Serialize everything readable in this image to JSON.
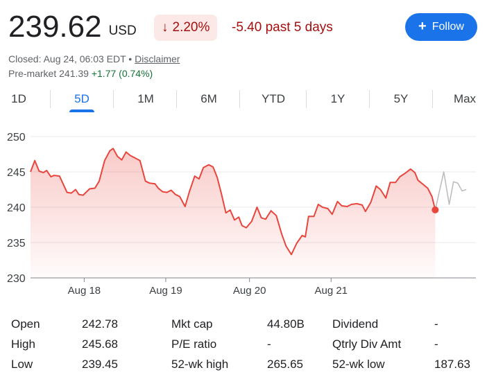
{
  "quote": {
    "price": "239.62",
    "currency": "USD",
    "change_arrow": "↓",
    "change_percent": "2.20%",
    "change_period": "-5.40 past 5 days",
    "closed_text": "Closed: Aug 24, 06:03 EDT •",
    "disclaimer": "Disclaimer",
    "premarket_label": "Pre-market 241.39",
    "premarket_change": "+1.77 (0.74%)"
  },
  "follow_button": {
    "icon": "plus-icon",
    "label": "Follow"
  },
  "tabs": [
    "1D",
    "5D",
    "1M",
    "6M",
    "YTD",
    "1Y",
    "5Y",
    "Max"
  ],
  "active_tab": "5D",
  "colors": {
    "negative": "#a50e0e",
    "line": "#e8453c",
    "accent": "#1a73e8",
    "forecast": "#bdbdbd"
  },
  "chart_data": {
    "type": "line",
    "title": "",
    "xlabel": "",
    "ylabel": "",
    "ylim": [
      230,
      250
    ],
    "yticks": [
      250,
      245,
      240,
      235,
      230
    ],
    "grid": true,
    "xticks": [
      {
        "label": "Aug 18",
        "at": 2.5
      },
      {
        "label": "Aug 19",
        "at": 6.3
      },
      {
        "label": "Aug 20",
        "at": 10.2
      },
      {
        "label": "Aug 21",
        "at": 14.0
      }
    ],
    "x_range": [
      0,
      19
    ],
    "series": [
      {
        "values": [
          [
            0.0,
            245.0
          ],
          [
            0.2,
            246.6
          ],
          [
            0.4,
            245.1
          ],
          [
            0.6,
            244.9
          ],
          [
            0.75,
            245.2
          ],
          [
            0.95,
            244.3
          ],
          [
            1.1,
            244.5
          ],
          [
            1.35,
            244.4
          ],
          [
            1.7,
            242.1
          ],
          [
            1.9,
            242.0
          ],
          [
            2.1,
            242.5
          ],
          [
            2.25,
            241.8
          ],
          [
            2.45,
            241.7
          ],
          [
            2.75,
            242.6
          ],
          [
            3.0,
            242.7
          ],
          [
            3.2,
            243.7
          ],
          [
            3.45,
            246.6
          ],
          [
            3.7,
            248.0
          ],
          [
            3.85,
            248.3
          ],
          [
            4.05,
            247.2
          ],
          [
            4.25,
            246.7
          ],
          [
            4.45,
            247.8
          ],
          [
            4.65,
            247.3
          ],
          [
            4.85,
            247.0
          ],
          [
            5.1,
            246.6
          ],
          [
            5.35,
            243.7
          ],
          [
            5.55,
            243.4
          ],
          [
            5.8,
            243.3
          ],
          [
            5.95,
            242.7
          ],
          [
            6.15,
            242.2
          ],
          [
            6.35,
            242.1
          ],
          [
            6.55,
            242.4
          ],
          [
            6.75,
            241.8
          ],
          [
            6.95,
            241.5
          ],
          [
            7.2,
            240.1
          ],
          [
            7.4,
            242.2
          ],
          [
            7.65,
            244.4
          ],
          [
            7.85,
            244.0
          ],
          [
            8.05,
            245.6
          ],
          [
            8.3,
            246.0
          ],
          [
            8.5,
            245.7
          ],
          [
            8.7,
            244.2
          ],
          [
            8.9,
            241.8
          ],
          [
            9.1,
            239.2
          ],
          [
            9.3,
            239.6
          ],
          [
            9.5,
            238.2
          ],
          [
            9.7,
            238.6
          ],
          [
            9.85,
            237.4
          ],
          [
            10.05,
            237.1
          ],
          [
            10.3,
            238.0
          ],
          [
            10.55,
            240.0
          ],
          [
            10.75,
            238.5
          ],
          [
            10.95,
            238.3
          ],
          [
            11.2,
            239.5
          ],
          [
            11.45,
            238.8
          ],
          [
            11.7,
            236.2
          ],
          [
            11.9,
            234.5
          ],
          [
            12.15,
            233.3
          ],
          [
            12.4,
            234.9
          ],
          [
            12.65,
            236.0
          ],
          [
            12.8,
            235.8
          ],
          [
            12.95,
            238.7
          ],
          [
            13.2,
            238.7
          ],
          [
            13.4,
            240.4
          ],
          [
            13.6,
            240.0
          ],
          [
            13.85,
            239.8
          ],
          [
            14.05,
            239.0
          ],
          [
            14.3,
            240.8
          ],
          [
            14.5,
            240.2
          ],
          [
            14.75,
            240.1
          ],
          [
            14.95,
            240.4
          ],
          [
            15.2,
            240.5
          ],
          [
            15.45,
            240.3
          ],
          [
            15.6,
            239.4
          ],
          [
            15.85,
            240.7
          ],
          [
            16.1,
            243.0
          ],
          [
            16.3,
            242.5
          ],
          [
            16.55,
            241.3
          ],
          [
            16.75,
            243.5
          ],
          [
            17.0,
            243.5
          ],
          [
            17.2,
            244.3
          ],
          [
            17.45,
            244.8
          ],
          [
            17.7,
            245.4
          ],
          [
            17.9,
            244.9
          ],
          [
            18.05,
            243.8
          ],
          [
            18.3,
            243.2
          ],
          [
            18.5,
            242.7
          ],
          [
            18.7,
            241.5
          ],
          [
            18.85,
            239.62
          ]
        ]
      },
      {
        "values": [
          [
            18.85,
            239.62
          ],
          [
            19.25,
            245.0
          ],
          [
            19.5,
            240.4
          ],
          [
            19.7,
            243.6
          ],
          [
            19.9,
            243.4
          ],
          [
            20.1,
            242.3
          ],
          [
            20.3,
            242.5
          ]
        ]
      }
    ]
  },
  "stats": [
    [
      {
        "label": "Open",
        "value": "242.78"
      },
      {
        "label": "Mkt cap",
        "value": "44.80B"
      },
      {
        "label": "Dividend",
        "value": "-"
      }
    ],
    [
      {
        "label": "High",
        "value": "245.68"
      },
      {
        "label": "P/E ratio",
        "value": "-"
      },
      {
        "label": "Qtrly Div Amt",
        "value": "-"
      }
    ],
    [
      {
        "label": "Low",
        "value": "239.45"
      },
      {
        "label": "52-wk high",
        "value": "265.65"
      },
      {
        "label": "52-wk low",
        "value": "187.63"
      }
    ]
  ]
}
